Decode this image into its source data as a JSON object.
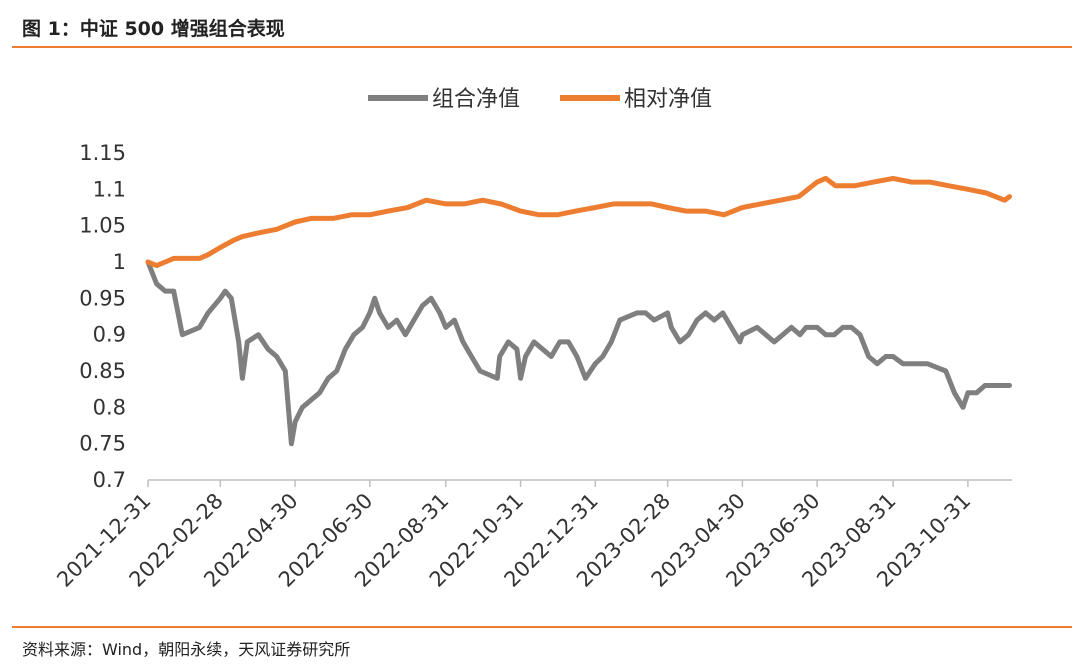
{
  "header": {
    "title": "图 1：中证 500 增强组合表现"
  },
  "footer": {
    "source": "资料来源：Wind，朝阳永续，天风证券研究所"
  },
  "colors": {
    "accent": "#ed7d31",
    "series_gray": "#7f7f7f",
    "series_orange": "#ed7d31"
  },
  "chart_data": {
    "type": "line",
    "title": "",
    "xlabel": "",
    "ylabel": "",
    "ylim": [
      0.7,
      1.15
    ],
    "yticks": [
      "1.15",
      "1.1",
      "1.05",
      "1",
      "0.95",
      "0.9",
      "0.85",
      "0.8",
      "0.75",
      "0.7"
    ],
    "xticks": [
      "2021-12-31",
      "2022-02-28",
      "2022-04-30",
      "2022-06-30",
      "2022-08-31",
      "2022-10-31",
      "2022-12-31",
      "2023-02-28",
      "2023-04-30",
      "2023-06-30",
      "2023-08-31",
      "2023-10-31"
    ],
    "grid": false,
    "legend_position": "top-center",
    "series": [
      {
        "name": "组合净值",
        "color": "#7f7f7f",
        "points": [
          [
            "2021-12-31",
            1.0
          ],
          [
            "2022-01-07",
            0.97
          ],
          [
            "2022-01-14",
            0.96
          ],
          [
            "2022-01-21",
            0.96
          ],
          [
            "2022-01-28",
            0.9
          ],
          [
            "2022-02-11",
            0.91
          ],
          [
            "2022-02-18",
            0.93
          ],
          [
            "2022-02-28",
            0.95
          ],
          [
            "2022-03-04",
            0.96
          ],
          [
            "2022-03-09",
            0.95
          ],
          [
            "2022-03-15",
            0.89
          ],
          [
            "2022-03-18",
            0.84
          ],
          [
            "2022-03-22",
            0.89
          ],
          [
            "2022-03-31",
            0.9
          ],
          [
            "2022-04-08",
            0.88
          ],
          [
            "2022-04-15",
            0.87
          ],
          [
            "2022-04-22",
            0.85
          ],
          [
            "2022-04-27",
            0.75
          ],
          [
            "2022-04-30",
            0.78
          ],
          [
            "2022-05-06",
            0.8
          ],
          [
            "2022-05-13",
            0.81
          ],
          [
            "2022-05-20",
            0.82
          ],
          [
            "2022-05-27",
            0.84
          ],
          [
            "2022-06-03",
            0.85
          ],
          [
            "2022-06-10",
            0.88
          ],
          [
            "2022-06-17",
            0.9
          ],
          [
            "2022-06-24",
            0.91
          ],
          [
            "2022-06-30",
            0.93
          ],
          [
            "2022-07-04",
            0.95
          ],
          [
            "2022-07-08",
            0.93
          ],
          [
            "2022-07-15",
            0.91
          ],
          [
            "2022-07-22",
            0.92
          ],
          [
            "2022-07-29",
            0.9
          ],
          [
            "2022-08-05",
            0.92
          ],
          [
            "2022-08-12",
            0.94
          ],
          [
            "2022-08-19",
            0.95
          ],
          [
            "2022-08-26",
            0.93
          ],
          [
            "2022-08-31",
            0.91
          ],
          [
            "2022-09-07",
            0.92
          ],
          [
            "2022-09-14",
            0.89
          ],
          [
            "2022-09-21",
            0.87
          ],
          [
            "2022-09-28",
            0.85
          ],
          [
            "2022-10-12",
            0.84
          ],
          [
            "2022-10-14",
            0.87
          ],
          [
            "2022-10-21",
            0.89
          ],
          [
            "2022-10-28",
            0.88
          ],
          [
            "2022-10-31",
            0.84
          ],
          [
            "2022-11-04",
            0.87
          ],
          [
            "2022-11-11",
            0.89
          ],
          [
            "2022-11-18",
            0.88
          ],
          [
            "2022-11-25",
            0.87
          ],
          [
            "2022-12-02",
            0.89
          ],
          [
            "2022-12-09",
            0.89
          ],
          [
            "2022-12-16",
            0.87
          ],
          [
            "2022-12-23",
            0.84
          ],
          [
            "2022-12-31",
            0.86
          ],
          [
            "2023-01-06",
            0.87
          ],
          [
            "2023-01-13",
            0.89
          ],
          [
            "2023-01-20",
            0.92
          ],
          [
            "2023-02-03",
            0.93
          ],
          [
            "2023-02-10",
            0.93
          ],
          [
            "2023-02-17",
            0.92
          ],
          [
            "2023-02-28",
            0.93
          ],
          [
            "2023-03-03",
            0.91
          ],
          [
            "2023-03-10",
            0.89
          ],
          [
            "2023-03-17",
            0.9
          ],
          [
            "2023-03-24",
            0.92
          ],
          [
            "2023-03-31",
            0.93
          ],
          [
            "2023-04-07",
            0.92
          ],
          [
            "2023-04-14",
            0.93
          ],
          [
            "2023-04-21",
            0.91
          ],
          [
            "2023-04-28",
            0.89
          ],
          [
            "2023-04-30",
            0.9
          ],
          [
            "2023-05-12",
            0.91
          ],
          [
            "2023-05-19",
            0.9
          ],
          [
            "2023-05-26",
            0.89
          ],
          [
            "2023-06-02",
            0.9
          ],
          [
            "2023-06-09",
            0.91
          ],
          [
            "2023-06-16",
            0.9
          ],
          [
            "2023-06-21",
            0.91
          ],
          [
            "2023-06-30",
            0.91
          ],
          [
            "2023-07-07",
            0.9
          ],
          [
            "2023-07-14",
            0.9
          ],
          [
            "2023-07-21",
            0.91
          ],
          [
            "2023-07-28",
            0.91
          ],
          [
            "2023-08-04",
            0.9
          ],
          [
            "2023-08-11",
            0.87
          ],
          [
            "2023-08-18",
            0.86
          ],
          [
            "2023-08-25",
            0.87
          ],
          [
            "2023-08-31",
            0.87
          ],
          [
            "2023-09-08",
            0.86
          ],
          [
            "2023-09-15",
            0.86
          ],
          [
            "2023-09-22",
            0.86
          ],
          [
            "2023-09-28",
            0.86
          ],
          [
            "2023-10-13",
            0.85
          ],
          [
            "2023-10-20",
            0.82
          ],
          [
            "2023-10-27",
            0.8
          ],
          [
            "2023-10-31",
            0.82
          ],
          [
            "2023-11-07",
            0.82
          ],
          [
            "2023-11-14",
            0.83
          ],
          [
            "2023-11-21",
            0.83
          ],
          [
            "2023-11-28",
            0.83
          ],
          [
            "2023-12-04",
            0.83
          ]
        ]
      },
      {
        "name": "相对净值",
        "color": "#ed7d31",
        "points": [
          [
            "2021-12-31",
            1.0
          ],
          [
            "2022-01-07",
            0.995
          ],
          [
            "2022-01-14",
            1.0
          ],
          [
            "2022-01-21",
            1.005
          ],
          [
            "2022-01-28",
            1.005
          ],
          [
            "2022-02-11",
            1.005
          ],
          [
            "2022-02-18",
            1.01
          ],
          [
            "2022-02-28",
            1.02
          ],
          [
            "2022-03-11",
            1.03
          ],
          [
            "2022-03-18",
            1.035
          ],
          [
            "2022-03-31",
            1.04
          ],
          [
            "2022-04-15",
            1.045
          ],
          [
            "2022-04-30",
            1.055
          ],
          [
            "2022-05-13",
            1.06
          ],
          [
            "2022-05-31",
            1.06
          ],
          [
            "2022-06-15",
            1.065
          ],
          [
            "2022-06-30",
            1.065
          ],
          [
            "2022-07-15",
            1.07
          ],
          [
            "2022-07-31",
            1.075
          ],
          [
            "2022-08-15",
            1.085
          ],
          [
            "2022-08-31",
            1.08
          ],
          [
            "2022-09-15",
            1.08
          ],
          [
            "2022-09-30",
            1.085
          ],
          [
            "2022-10-15",
            1.08
          ],
          [
            "2022-10-31",
            1.07
          ],
          [
            "2022-11-15",
            1.065
          ],
          [
            "2022-11-30",
            1.065
          ],
          [
            "2022-12-15",
            1.07
          ],
          [
            "2022-12-31",
            1.075
          ],
          [
            "2023-01-15",
            1.08
          ],
          [
            "2023-01-31",
            1.08
          ],
          [
            "2023-02-15",
            1.08
          ],
          [
            "2023-02-28",
            1.075
          ],
          [
            "2023-03-15",
            1.07
          ],
          [
            "2023-03-31",
            1.07
          ],
          [
            "2023-04-15",
            1.065
          ],
          [
            "2023-04-30",
            1.075
          ],
          [
            "2023-05-15",
            1.08
          ],
          [
            "2023-05-31",
            1.085
          ],
          [
            "2023-06-15",
            1.09
          ],
          [
            "2023-06-30",
            1.11
          ],
          [
            "2023-07-07",
            1.115
          ],
          [
            "2023-07-15",
            1.105
          ],
          [
            "2023-07-31",
            1.105
          ],
          [
            "2023-08-15",
            1.11
          ],
          [
            "2023-08-31",
            1.115
          ],
          [
            "2023-09-15",
            1.11
          ],
          [
            "2023-09-30",
            1.11
          ],
          [
            "2023-10-15",
            1.105
          ],
          [
            "2023-10-31",
            1.1
          ],
          [
            "2023-11-15",
            1.095
          ],
          [
            "2023-11-30",
            1.085
          ],
          [
            "2023-12-04",
            1.09
          ]
        ]
      }
    ]
  }
}
